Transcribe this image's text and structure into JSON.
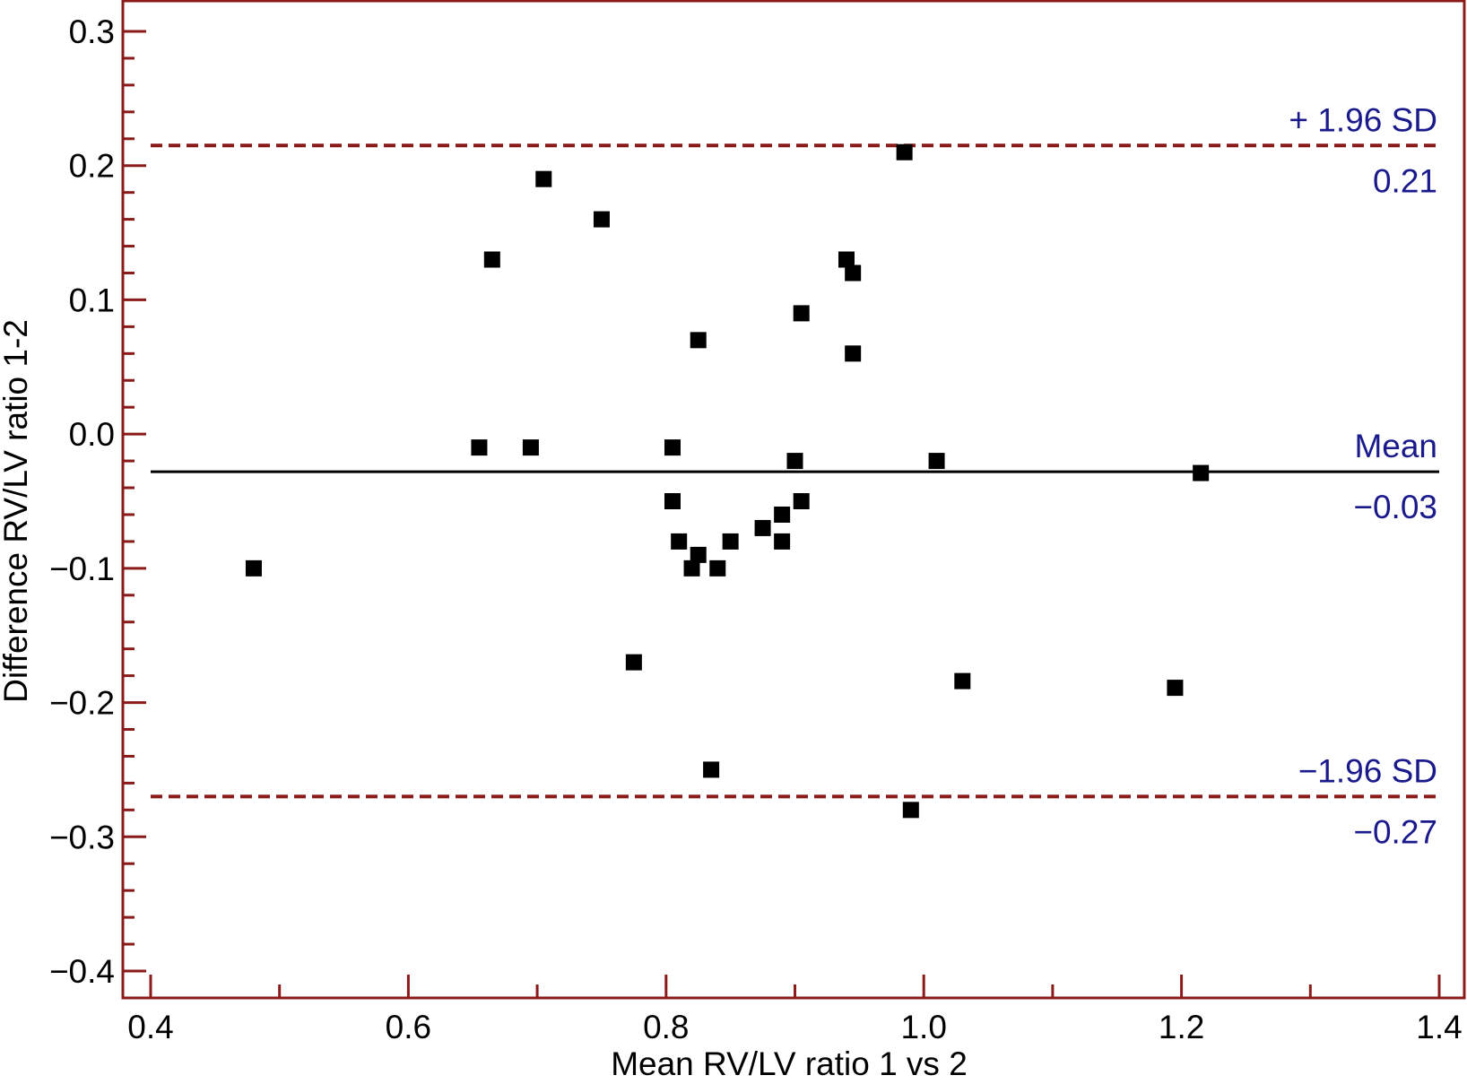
{
  "chart_data": {
    "type": "scatter",
    "xlabel": "Mean RV/LV ratio 1 vs 2",
    "ylabel": "Difference RV/LV ratio 1-2",
    "xlim": [
      0.4,
      1.4
    ],
    "ylim": [
      -0.4,
      0.3
    ],
    "x_ticks": [
      "0.4",
      "0.6",
      "0.8",
      "1.0",
      "1.2",
      "1.4"
    ],
    "y_ticks": [
      "0.3",
      "0.2",
      "0.1",
      "0.0",
      "−0.1",
      "−0.2",
      "−0.3",
      "−0.4"
    ],
    "reference_lines": [
      {
        "name": "+ 1.96 SD",
        "value_label": "0.21",
        "y": 0.215,
        "style": "dashed",
        "color": "#8B1A1A"
      },
      {
        "name": "Mean",
        "value_label": "−0.03",
        "y": -0.028,
        "style": "solid",
        "color": "#000000"
      },
      {
        "name": "−1.96 SD",
        "value_label": "−0.27",
        "y": -0.27,
        "style": "dashed",
        "color": "#8B1A1A"
      }
    ],
    "points": [
      {
        "x": 0.48,
        "y": -0.1
      },
      {
        "x": 0.655,
        "y": -0.01
      },
      {
        "x": 0.665,
        "y": 0.13
      },
      {
        "x": 0.695,
        "y": -0.01
      },
      {
        "x": 0.705,
        "y": 0.19
      },
      {
        "x": 0.75,
        "y": 0.16
      },
      {
        "x": 0.775,
        "y": -0.17
      },
      {
        "x": 0.805,
        "y": -0.01
      },
      {
        "x": 0.805,
        "y": -0.05
      },
      {
        "x": 0.81,
        "y": -0.08
      },
      {
        "x": 0.82,
        "y": -0.1
      },
      {
        "x": 0.825,
        "y": -0.09
      },
      {
        "x": 0.825,
        "y": 0.07
      },
      {
        "x": 0.835,
        "y": -0.25
      },
      {
        "x": 0.84,
        "y": -0.1
      },
      {
        "x": 0.85,
        "y": -0.08
      },
      {
        "x": 0.875,
        "y": -0.07
      },
      {
        "x": 0.89,
        "y": -0.06
      },
      {
        "x": 0.89,
        "y": -0.08
      },
      {
        "x": 0.9,
        "y": -0.02
      },
      {
        "x": 0.905,
        "y": -0.05
      },
      {
        "x": 0.905,
        "y": 0.09
      },
      {
        "x": 0.94,
        "y": 0.13
      },
      {
        "x": 0.945,
        "y": 0.12
      },
      {
        "x": 0.945,
        "y": 0.06
      },
      {
        "x": 0.985,
        "y": 0.21
      },
      {
        "x": 0.99,
        "y": -0.28
      },
      {
        "x": 1.01,
        "y": -0.02
      },
      {
        "x": 1.03,
        "y": -0.184
      },
      {
        "x": 1.195,
        "y": -0.189
      },
      {
        "x": 1.215,
        "y": -0.029
      }
    ],
    "grid": false,
    "colors": {
      "frame": "#8B1A1A",
      "ticks": "#8B1A1A",
      "marker": "#000000",
      "line_labels": "#1A1A8C",
      "axis_text": "#000000"
    },
    "marker_shape": "square"
  }
}
